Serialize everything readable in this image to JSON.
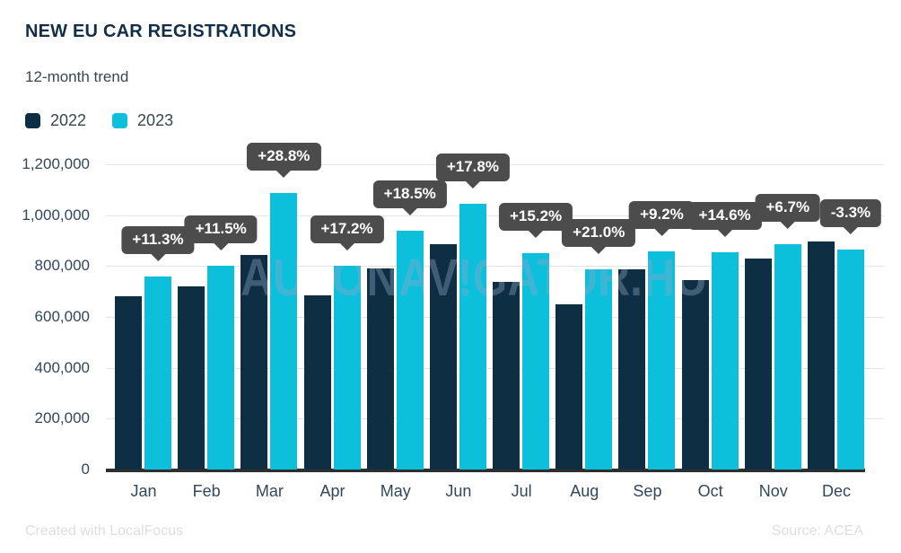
{
  "header": {
    "title": "NEW EU CAR REGISTRATIONS",
    "subtitle": "12-month trend"
  },
  "legend": [
    {
      "label": "2022",
      "color": "#0e2e43"
    },
    {
      "label": "2023",
      "color": "#0cc0dc"
    }
  ],
  "watermark_text": "AUTONAV!GATOR.HU",
  "footer": {
    "left": "Created with LocalFocus",
    "right": "Source: ACEA"
  },
  "colors": {
    "bar_2022": "#0e2e43",
    "bar_2023": "#0cc0dc",
    "tooltip_bg": "#4c4c4c",
    "gridline": "#e4e4e4",
    "axis_line": "#2f2f2f",
    "title_text": "#132f47",
    "axis_text": "#33475a"
  },
  "chart_data": {
    "type": "bar",
    "title": "NEW EU CAR REGISTRATIONS",
    "subtitle": "12-month trend",
    "categories": [
      "Jan",
      "Feb",
      "Mar",
      "Apr",
      "May",
      "Jun",
      "Jul",
      "Aug",
      "Sep",
      "Oct",
      "Nov",
      "Dec"
    ],
    "series": [
      {
        "name": "2022",
        "color": "#0e2e43",
        "values": [
          682000,
          719000,
          843000,
          683000,
          792000,
          886000,
          738000,
          650000,
          787000,
          746000,
          830000,
          895000
        ]
      },
      {
        "name": "2023",
        "color": "#0cc0dc",
        "values": [
          759000,
          802000,
          1086000,
          800000,
          939000,
          1044000,
          850000,
          787000,
          859000,
          855000,
          886000,
          865000
        ]
      }
    ],
    "change_labels": [
      "+11.3%",
      "+11.5%",
      "+28.8%",
      "+17.2%",
      "+18.5%",
      "+17.8%",
      "+15.2%",
      "+21.0%",
      "+9.2%",
      "+14.6%",
      "+6.7%",
      "-3.3%"
    ],
    "xlabel": "",
    "ylabel": "",
    "yticks": [
      0,
      200000,
      400000,
      600000,
      800000,
      1000000,
      1200000
    ],
    "ytick_labels": [
      "0",
      "200,000",
      "400,000",
      "600,000",
      "800,000",
      "1,000,000",
      "1,200,000"
    ],
    "ylim": [
      0,
      1200000
    ],
    "grid": true,
    "legend_position": "top-left"
  }
}
